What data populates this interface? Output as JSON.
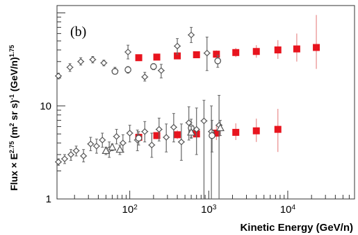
{
  "chart_data": {
    "type": "scatter",
    "panel_label": "(b)",
    "title": "",
    "xlabel": "Kinetic Energy (GeV/n)",
    "ylabel_main": "Flux × E",
    "ylabel_exp1": "2.75",
    "ylabel_mid": " (m",
    "ylabel_exp2": "2",
    "ylabel_mid2": " sr s)",
    "ylabel_exp3": "-1",
    "ylabel_end": " (GeV/n)",
    "ylabel_exp4": "1.75",
    "x_scale": "log",
    "y_scale": "log",
    "xlim": [
      12,
      70000
    ],
    "ylim": [
      1,
      120
    ],
    "x_ticks": [
      {
        "base": "10",
        "exp": "2"
      },
      {
        "base": "10",
        "exp": "3"
      },
      {
        "base": "10",
        "exp": "4"
      }
    ],
    "y_ticks": [
      "10",
      "1"
    ],
    "grid": false,
    "series": [
      {
        "color": "#e8141e",
        "marker": "square",
        "points": [
          {
            "x": 130,
            "y": 33,
            "lo": 31,
            "hi": 35
          },
          {
            "x": 220,
            "y": 33.5,
            "lo": 31.5,
            "hi": 35.5
          },
          {
            "x": 400,
            "y": 34.5,
            "lo": 32,
            "hi": 37
          },
          {
            "x": 700,
            "y": 35.5,
            "lo": 33,
            "hi": 38.5
          },
          {
            "x": 1250,
            "y": 36,
            "lo": 33,
            "hi": 39.5
          },
          {
            "x": 2200,
            "y": 37.5,
            "lo": 33.5,
            "hi": 42
          },
          {
            "x": 4000,
            "y": 38.5,
            "lo": 33,
            "hi": 45
          },
          {
            "x": 7500,
            "y": 40,
            "lo": 32,
            "hi": 51
          },
          {
            "x": 13000,
            "y": 41,
            "lo": 30,
            "hi": 60
          },
          {
            "x": 23000,
            "y": 42.5,
            "lo": 25,
            "hi": 95
          }
        ]
      },
      {
        "color": "#e8141e",
        "marker": "square",
        "points": [
          {
            "x": 130,
            "y": 4.6,
            "lo": 4.3,
            "hi": 4.9
          },
          {
            "x": 220,
            "y": 4.8,
            "lo": 4.4,
            "hi": 5.2
          },
          {
            "x": 400,
            "y": 4.9,
            "lo": 4.4,
            "hi": 5.5
          },
          {
            "x": 700,
            "y": 5.0,
            "lo": 4.4,
            "hi": 5.8
          },
          {
            "x": 1250,
            "y": 5.1,
            "lo": 4.3,
            "hi": 6.1
          },
          {
            "x": 2200,
            "y": 5.2,
            "lo": 4.3,
            "hi": 6.5
          },
          {
            "x": 4000,
            "y": 5.4,
            "lo": 4.1,
            "hi": 7.3
          },
          {
            "x": 7500,
            "y": 5.6,
            "lo": 3.2,
            "hi": 9.3
          }
        ]
      },
      {
        "color": "#555555",
        "marker": "diamond-open",
        "points": [
          {
            "x": 12.5,
            "y": 21,
            "lo": 19.5,
            "hi": 22.5
          },
          {
            "x": 17.5,
            "y": 26,
            "lo": 23.5,
            "hi": 28.5
          },
          {
            "x": 24,
            "y": 30,
            "lo": 27.5,
            "hi": 33
          },
          {
            "x": 34,
            "y": 31.5,
            "lo": 29,
            "hi": 34
          },
          {
            "x": 47,
            "y": 29,
            "lo": 27,
            "hi": 31
          },
          {
            "x": 65,
            "y": 24,
            "lo": 22,
            "hi": 26
          },
          {
            "x": 95,
            "y": 38,
            "lo": 32,
            "hi": 45
          },
          {
            "x": 155,
            "y": 20.5,
            "lo": 18.5,
            "hi": 23
          },
          {
            "x": 250,
            "y": 24,
            "lo": 20,
            "hi": 28
          },
          {
            "x": 400,
            "y": 44,
            "lo": 36,
            "hi": 53
          },
          {
            "x": 600,
            "y": 58,
            "lo": 48,
            "hi": 70
          },
          {
            "x": 950,
            "y": 37,
            "lo": 24,
            "hi": 55
          },
          {
            "x": 12.5,
            "y": 2.5,
            "lo": 2.3,
            "hi": 2.7
          },
          {
            "x": 15,
            "y": 2.7,
            "lo": 2.4,
            "hi": 3.0
          },
          {
            "x": 18,
            "y": 3.0,
            "lo": 2.6,
            "hi": 3.4
          },
          {
            "x": 21,
            "y": 3.3,
            "lo": 2.9,
            "hi": 3.7
          },
          {
            "x": 26,
            "y": 2.9,
            "lo": 2.5,
            "hi": 3.4
          },
          {
            "x": 32,
            "y": 3.9,
            "lo": 3.3,
            "hi": 4.6
          },
          {
            "x": 38,
            "y": 3.7,
            "lo": 3.1,
            "hi": 4.4
          },
          {
            "x": 45,
            "y": 4.3,
            "lo": 3.6,
            "hi": 5.1
          },
          {
            "x": 55,
            "y": 3.4,
            "lo": 2.8,
            "hi": 4.1
          },
          {
            "x": 68,
            "y": 4.7,
            "lo": 3.9,
            "hi": 5.6
          },
          {
            "x": 82,
            "y": 4.0,
            "lo": 3.2,
            "hi": 4.9
          },
          {
            "x": 100,
            "y": 5.1,
            "lo": 4.1,
            "hi": 6.2
          },
          {
            "x": 125,
            "y": 4.3,
            "lo": 3.3,
            "hi": 5.5
          },
          {
            "x": 155,
            "y": 5.3,
            "lo": 4.1,
            "hi": 6.8
          },
          {
            "x": 190,
            "y": 3.8,
            "lo": 2.8,
            "hi": 5.1
          },
          {
            "x": 235,
            "y": 5.6,
            "lo": 4.2,
            "hi": 7.4
          },
          {
            "x": 290,
            "y": 4.6,
            "lo": 3.2,
            "hi": 6.4
          },
          {
            "x": 360,
            "y": 5.9,
            "lo": 4.1,
            "hi": 8.3
          },
          {
            "x": 450,
            "y": 4.1,
            "lo": 2.6,
            "hi": 6.4
          },
          {
            "x": 560,
            "y": 6.6,
            "lo": 4.3,
            "hi": 9.8
          },
          {
            "x": 700,
            "y": 5.6,
            "lo": 3.0,
            "hi": 9.5
          },
          {
            "x": 870,
            "y": 6.9,
            "lo": 1.0,
            "hi": 11.5
          },
          {
            "x": 1080,
            "y": 5.3,
            "lo": 1.0,
            "hi": 10.0
          },
          {
            "x": 1350,
            "y": 6.2,
            "lo": 1.0,
            "hi": 13.0
          }
        ]
      },
      {
        "color": "#555555",
        "marker": "circle-open",
        "points": [
          {
            "x": 65,
            "y": 23.5,
            "lo": 22,
            "hi": 25
          },
          {
            "x": 95,
            "y": 24.5,
            "lo": 22.5,
            "hi": 26.5
          },
          {
            "x": 200,
            "y": 26.5,
            "lo": 24.5,
            "hi": 28.5
          },
          {
            "x": 1300,
            "y": 30.5,
            "lo": 26,
            "hi": 35
          },
          {
            "x": 130,
            "y": 4.5,
            "lo": 3.8,
            "hi": 5.3
          },
          {
            "x": 600,
            "y": 5.8,
            "lo": 4.6,
            "hi": 7.2
          },
          {
            "x": 1100,
            "y": 4.8,
            "lo": 3.2,
            "hi": 7.0
          }
        ]
      },
      {
        "color": "#555555",
        "marker": "triangle-open",
        "points": [
          {
            "x": 50,
            "y": 3.3,
            "lo": 3.0,
            "hi": 3.6
          },
          {
            "x": 60,
            "y": 3.6,
            "lo": 3.3,
            "hi": 3.9
          },
          {
            "x": 75,
            "y": 3.4,
            "lo": 3.0,
            "hi": 3.8
          },
          {
            "x": 600,
            "y": 5.2,
            "lo": 4.5,
            "hi": 6.0
          },
          {
            "x": 1400,
            "y": 5.8,
            "lo": 4.8,
            "hi": 7.0
          }
        ]
      }
    ]
  }
}
